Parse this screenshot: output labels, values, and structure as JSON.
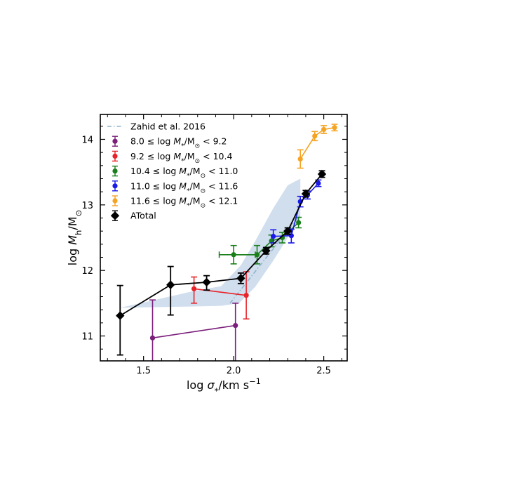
{
  "chart_data": {
    "type": "scatter",
    "xlabel_parts": [
      "log ",
      "σ",
      "*",
      "/km s",
      "−1"
    ],
    "ylabel_parts": [
      "log ",
      "M",
      "h",
      "/M",
      "⊙"
    ],
    "xlim": [
      1.26,
      2.63
    ],
    "ylim": [
      10.62,
      14.38
    ],
    "xticks": [
      1.5,
      2.0,
      2.5
    ],
    "yticks": [
      11,
      12,
      13,
      14
    ],
    "xtick_labels": [
      "1.5",
      "2.0",
      "2.5"
    ],
    "ytick_labels": [
      "11",
      "12",
      "13",
      "14"
    ],
    "legend_position": "upper-left",
    "reference": {
      "name": "Zahid et al. 2016",
      "color": "#8fb3cc",
      "band_color": "#c9d8eb",
      "line": [
        [
          1.98,
          11.5
        ],
        [
          2.37,
          12.85
        ]
      ],
      "band_upper": [
        [
          1.77,
          11.68
        ],
        [
          1.93,
          11.76
        ],
        [
          2.04,
          12.08
        ],
        [
          2.12,
          12.45
        ],
        [
          2.22,
          12.95
        ],
        [
          2.3,
          13.3
        ],
        [
          2.37,
          13.4
        ]
      ],
      "band_lower": [
        [
          1.37,
          11.43
        ],
        [
          1.78,
          11.45
        ],
        [
          1.93,
          11.46
        ],
        [
          2.03,
          11.5
        ],
        [
          2.12,
          11.75
        ],
        [
          2.22,
          12.15
        ],
        [
          2.3,
          12.5
        ],
        [
          2.37,
          12.82
        ]
      ]
    },
    "series": [
      {
        "name": "8.0  ≤  log M*/M⊙ < 9.2",
        "label_parts": [
          "8.0  ≤  log ",
          "M",
          "*",
          "/M",
          "⊙",
          " < 9.2"
        ],
        "color": "#7b1f7b",
        "marker": "circle",
        "points": [
          {
            "x": 1.55,
            "y": 10.97,
            "ylo": 10.4,
            "yhi": 11.55
          },
          {
            "x": 2.01,
            "y": 11.16,
            "ylo": 10.4,
            "yhi": 11.5
          }
        ]
      },
      {
        "name": "9.2  ≤  log M*/M⊙ < 10.4",
        "label_parts": [
          "9.2  ≤  log ",
          "M",
          "*",
          "/M",
          "⊙",
          " < 10.4"
        ],
        "color": "#e8232a",
        "marker": "circle",
        "points": [
          {
            "x": 1.78,
            "y": 11.72,
            "ylo": 11.5,
            "yhi": 11.9
          },
          {
            "x": 2.07,
            "y": 11.62,
            "ylo": 11.26,
            "yhi": 11.98
          }
        ]
      },
      {
        "name": "10.4  ≤  log M*/M⊙ < 11.0",
        "label_parts": [
          "10.4  ≤  log ",
          "M",
          "*",
          "/M",
          "⊙",
          " < 11.0"
        ],
        "color": "#1a7f1a",
        "marker": "circle",
        "points": [
          {
            "x": 2.0,
            "y": 12.24,
            "ylo": 12.1,
            "yhi": 12.38,
            "xlo": 1.92,
            "xhi": 2.12
          },
          {
            "x": 2.13,
            "y": 12.24,
            "ylo": 12.1,
            "yhi": 12.38
          },
          {
            "x": 2.21,
            "y": 12.45,
            "ylo": 12.36,
            "yhi": 12.54
          },
          {
            "x": 2.27,
            "y": 12.5,
            "ylo": 12.42,
            "yhi": 12.58
          },
          {
            "x": 2.36,
            "y": 12.73,
            "ylo": 12.65,
            "yhi": 12.81
          }
        ]
      },
      {
        "name": "11.0  ≤  log M*/M⊙ < 11.6",
        "label_parts": [
          "11.0  ≤  log ",
          "M",
          "*",
          "/M",
          "⊙",
          " < 11.6"
        ],
        "color": "#1a1ae8",
        "marker": "circle",
        "points": [
          {
            "x": 2.22,
            "y": 12.52,
            "ylo": 12.42,
            "yhi": 12.62
          },
          {
            "x": 2.32,
            "y": 12.53,
            "ylo": 12.42,
            "yhi": 12.63
          },
          {
            "x": 2.37,
            "y": 13.05,
            "ylo": 12.97,
            "yhi": 13.13
          },
          {
            "x": 2.41,
            "y": 13.15,
            "ylo": 13.09,
            "yhi": 13.21
          },
          {
            "x": 2.47,
            "y": 13.33,
            "ylo": 13.28,
            "yhi": 13.38
          }
        ]
      },
      {
        "name": "11.6  ≤  log M*/M⊙ < 12.1",
        "label_parts": [
          "11.6  ≤  log ",
          "M",
          "*",
          "/M",
          "⊙",
          " < 12.1"
        ],
        "color": "#f5a323",
        "marker": "circle",
        "points": [
          {
            "x": 2.37,
            "y": 13.7,
            "ylo": 13.56,
            "yhi": 13.84
          },
          {
            "x": 2.45,
            "y": 14.05,
            "ylo": 13.98,
            "yhi": 14.12
          },
          {
            "x": 2.5,
            "y": 14.15,
            "ylo": 14.09,
            "yhi": 14.21
          },
          {
            "x": 2.56,
            "y": 14.18,
            "ylo": 14.13,
            "yhi": 14.23
          }
        ]
      },
      {
        "name": "ATotal",
        "label_parts": [
          "ATotal"
        ],
        "color": "#000000",
        "marker": "diamond",
        "points": [
          {
            "x": 1.37,
            "y": 11.31,
            "ylo": 10.71,
            "yhi": 11.77
          },
          {
            "x": 1.65,
            "y": 11.78,
            "ylo": 11.32,
            "yhi": 12.06
          },
          {
            "x": 1.85,
            "y": 11.82,
            "ylo": 11.7,
            "yhi": 11.92
          },
          {
            "x": 2.04,
            "y": 11.88,
            "ylo": 11.8,
            "yhi": 11.96
          },
          {
            "x": 2.18,
            "y": 12.3,
            "ylo": 12.25,
            "yhi": 12.35
          },
          {
            "x": 2.3,
            "y": 12.6,
            "ylo": 12.55,
            "yhi": 12.65
          },
          {
            "x": 2.4,
            "y": 13.17,
            "ylo": 13.12,
            "yhi": 13.22
          },
          {
            "x": 2.49,
            "y": 13.47,
            "ylo": 13.42,
            "yhi": 13.52
          }
        ]
      }
    ]
  }
}
